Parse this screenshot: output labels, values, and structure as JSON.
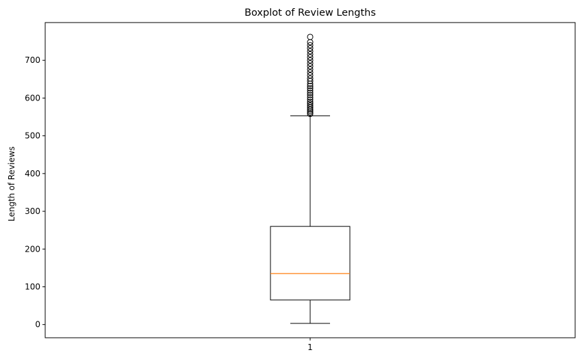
{
  "chart_data": {
    "type": "box",
    "title": "Boxplot of Review Lengths",
    "xlabel": "",
    "ylabel": "Length of Reviews",
    "categories": [
      "1"
    ],
    "ylim": [
      -35,
      800
    ],
    "yticks": [
      0,
      100,
      200,
      300,
      400,
      500,
      600,
      700
    ],
    "grid": false,
    "box": {
      "whisker_low": 3,
      "q1": 65,
      "median": 135,
      "q3": 260,
      "whisker_high": 553,
      "outliers": [
        558,
        562,
        566,
        570,
        575,
        580,
        585,
        590,
        596,
        602,
        608,
        614,
        620,
        626,
        632,
        638,
        645,
        652,
        660,
        668,
        676,
        684,
        692,
        700,
        708,
        716,
        724,
        732,
        740,
        748,
        762
      ]
    },
    "colors": {
      "box": "#000000",
      "median": "#ff7f0e",
      "outlier": "#000000"
    }
  }
}
